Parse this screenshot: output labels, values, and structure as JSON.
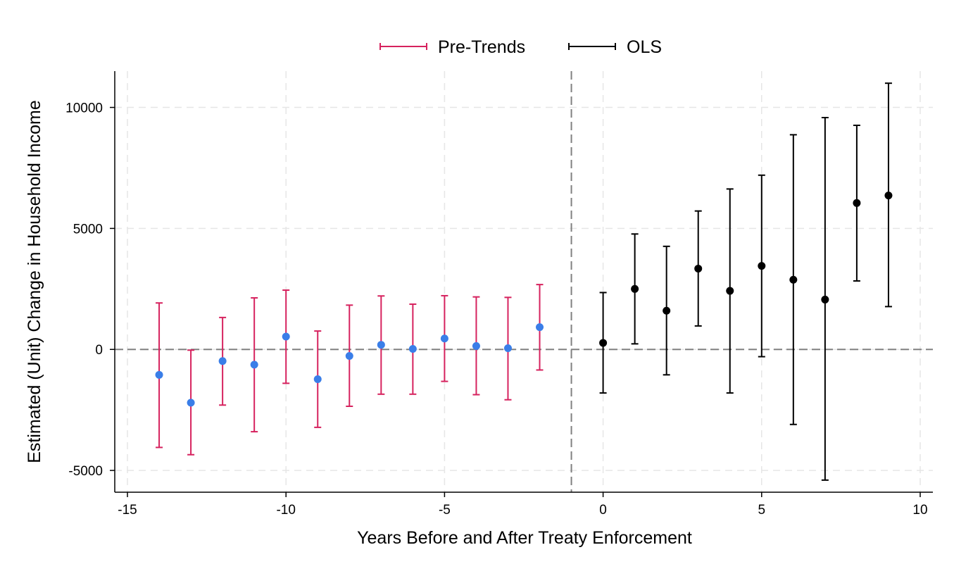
{
  "chart_data": {
    "type": "scatter",
    "title": "",
    "xlabel": "Years Before and After Treaty Enforcement",
    "ylabel": "Estimated (Unit) Change in Household Income",
    "xlim": [
      -15.4,
      10.4
    ],
    "ylim": [
      -5900,
      11500
    ],
    "xticks": [
      -15,
      -10,
      -5,
      0,
      5,
      10
    ],
    "xtick_labels": [
      "-15",
      "-10",
      "-5",
      "0",
      "5",
      "10"
    ],
    "yticks": [
      -5000,
      0,
      5000,
      10000
    ],
    "ytick_labels": [
      "-5000",
      "0",
      "5000",
      "10000"
    ],
    "grid": true,
    "legend_position": "top-center",
    "reference_lines": {
      "vertical_x": -1,
      "horizontal_y": 0
    },
    "series": [
      {
        "name": "Pre-Trends",
        "color": "#d6225e",
        "point_color": "#3a7ee8",
        "x": [
          -14,
          -13,
          -12,
          -11,
          -10,
          -9,
          -8,
          -7,
          -6,
          -5,
          -4,
          -3,
          -2
        ],
        "y": [
          -1050,
          -2200,
          -480,
          -630,
          530,
          -1230,
          -270,
          190,
          20,
          450,
          140,
          50,
          920
        ],
        "lower": [
          -4050,
          -4350,
          -2300,
          -3400,
          -1400,
          -3220,
          -2350,
          -1850,
          -1850,
          -1320,
          -1870,
          -2080,
          -850
        ],
        "upper": [
          1920,
          -30,
          1320,
          2130,
          2450,
          760,
          1830,
          2210,
          1870,
          2220,
          2170,
          2150,
          2680
        ]
      },
      {
        "name": "OLS",
        "color": "#000000",
        "point_color": "#000000",
        "x": [
          0,
          1,
          2,
          3,
          4,
          5,
          6,
          7,
          8,
          9
        ],
        "y": [
          270,
          2500,
          1600,
          3340,
          2420,
          3450,
          2880,
          2060,
          6050,
          6360
        ],
        "lower": [
          -1800,
          230,
          -1050,
          970,
          -1800,
          -300,
          -3100,
          -5400,
          2830,
          1770
        ],
        "upper": [
          2350,
          4770,
          4260,
          5720,
          6630,
          7200,
          8870,
          9580,
          9260,
          11000
        ]
      }
    ]
  }
}
